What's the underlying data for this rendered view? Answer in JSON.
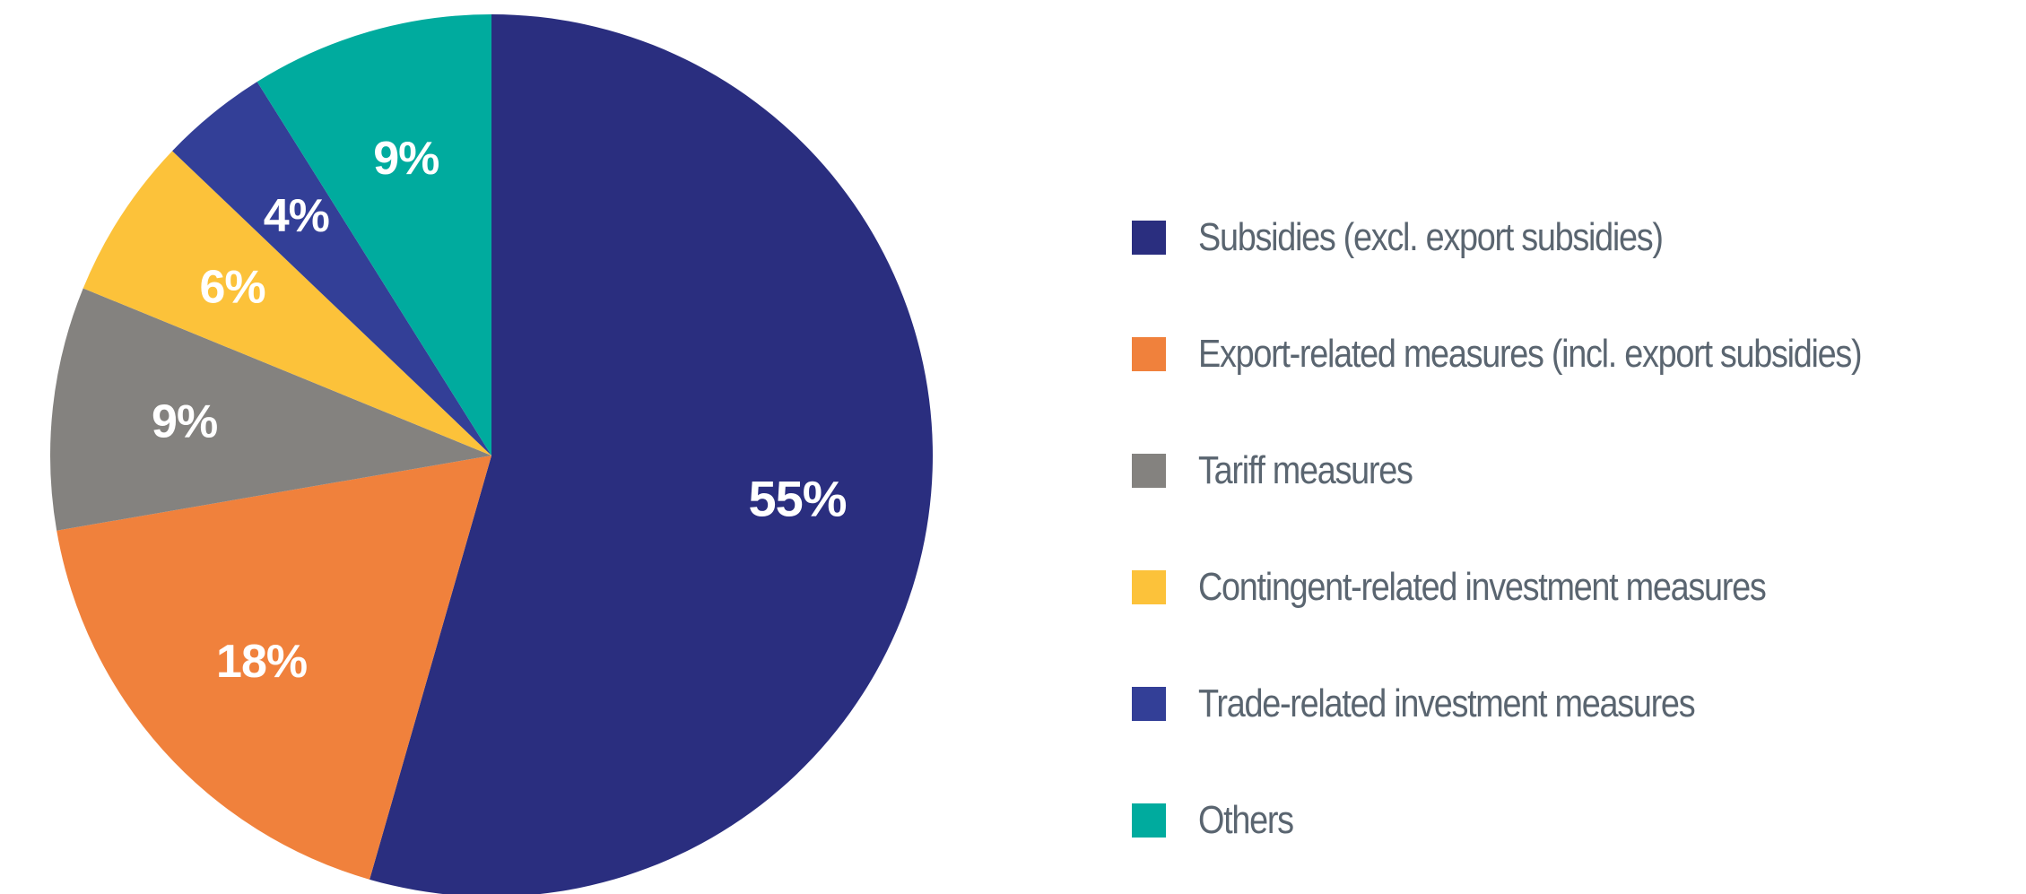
{
  "chart_data": {
    "type": "pie",
    "title": "",
    "start_angle_deg": 0,
    "direction": "clockwise",
    "legend_placement": "right",
    "slices": [
      {
        "label": "Subsidies (excl. export subsidies)",
        "value": 55,
        "value_label": "55%",
        "color": "#2a2e7f"
      },
      {
        "label": "Export-related measures (incl. export subsidies)",
        "value": 18,
        "value_label": "18%",
        "color": "#f0813c"
      },
      {
        "label": "Tariff measures",
        "value": 9,
        "value_label": "9%",
        "color": "#84827f"
      },
      {
        "label": "Contingent-related investment measures",
        "value": 6,
        "value_label": "6%",
        "color": "#fcc23a"
      },
      {
        "label": "Trade-related investment measures",
        "value": 4,
        "value_label": "4%",
        "color": "#333f97"
      },
      {
        "label": "Others",
        "value": 9,
        "value_label": "9%",
        "color": "#00ab9e"
      }
    ]
  }
}
